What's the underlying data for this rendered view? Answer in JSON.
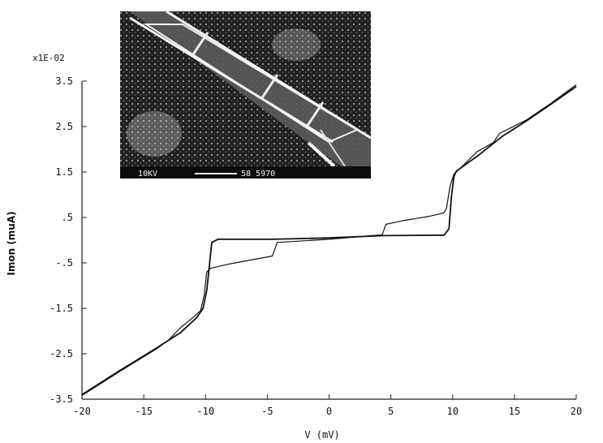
{
  "chart_data": {
    "type": "line",
    "xlabel": "V (mV)",
    "ylabel": "Imon (muA)",
    "y_multiplier": "x1E-02",
    "xlim": [
      -20,
      20
    ],
    "ylim": [
      -3.5,
      3.5
    ],
    "x_ticks": [
      "-20",
      "-15",
      "-10",
      "-5",
      "0",
      "5",
      "10",
      "15",
      "20"
    ],
    "y_ticks": [
      "3.5",
      "2.5",
      "1.5",
      ".5",
      "-.5",
      "-1.5",
      "-2.5",
      "-3.5"
    ],
    "grid": false,
    "series": [
      {
        "points": [
          [
            -20,
            -3.4
          ],
          [
            -17,
            -2.88
          ],
          [
            -14,
            -2.38
          ],
          [
            -12,
            -2.03
          ],
          [
            -10.7,
            -1.7
          ],
          [
            -10.2,
            -1.5
          ],
          [
            -9.9,
            -1.1
          ],
          [
            -9.7,
            -0.6
          ],
          [
            -9.5,
            -0.05
          ],
          [
            -9.0,
            0.02
          ],
          [
            -4.5,
            0.02
          ],
          [
            0,
            0.05
          ],
          [
            4.5,
            0.1
          ],
          [
            9.3,
            0.11
          ],
          [
            9.7,
            0.25
          ],
          [
            9.9,
            0.95
          ],
          [
            10.1,
            1.4
          ],
          [
            10.3,
            1.52
          ],
          [
            12,
            1.85
          ],
          [
            14,
            2.28
          ],
          [
            16,
            2.63
          ],
          [
            18,
            3.0
          ],
          [
            20,
            3.38
          ]
        ]
      },
      {
        "points": [
          [
            -20,
            -3.42
          ],
          [
            -17,
            -2.9
          ],
          [
            -14,
            -2.4
          ],
          [
            -13,
            -2.2
          ],
          [
            -12,
            -1.92
          ],
          [
            -11,
            -1.7
          ],
          [
            -10.4,
            -1.55
          ],
          [
            -10.1,
            -1.2
          ],
          [
            -9.9,
            -0.7
          ],
          [
            -9.6,
            -0.62
          ],
          [
            -8,
            -0.52
          ],
          [
            -6,
            -0.42
          ],
          [
            -4.6,
            -0.35
          ],
          [
            -4.2,
            -0.05
          ],
          [
            0,
            0.02
          ],
          [
            4.3,
            0.12
          ],
          [
            4.6,
            0.35
          ],
          [
            6,
            0.43
          ],
          [
            8,
            0.52
          ],
          [
            9.3,
            0.6
          ],
          [
            9.5,
            0.7
          ],
          [
            9.8,
            1.2
          ],
          [
            10.1,
            1.45
          ],
          [
            12,
            1.95
          ],
          [
            13.3,
            2.15
          ],
          [
            13.8,
            2.35
          ],
          [
            16,
            2.65
          ],
          [
            18,
            3.02
          ],
          [
            20,
            3.42
          ]
        ]
      }
    ]
  },
  "inset_image": {
    "scale_left": "10KV",
    "scale_right": "58 5970"
  }
}
